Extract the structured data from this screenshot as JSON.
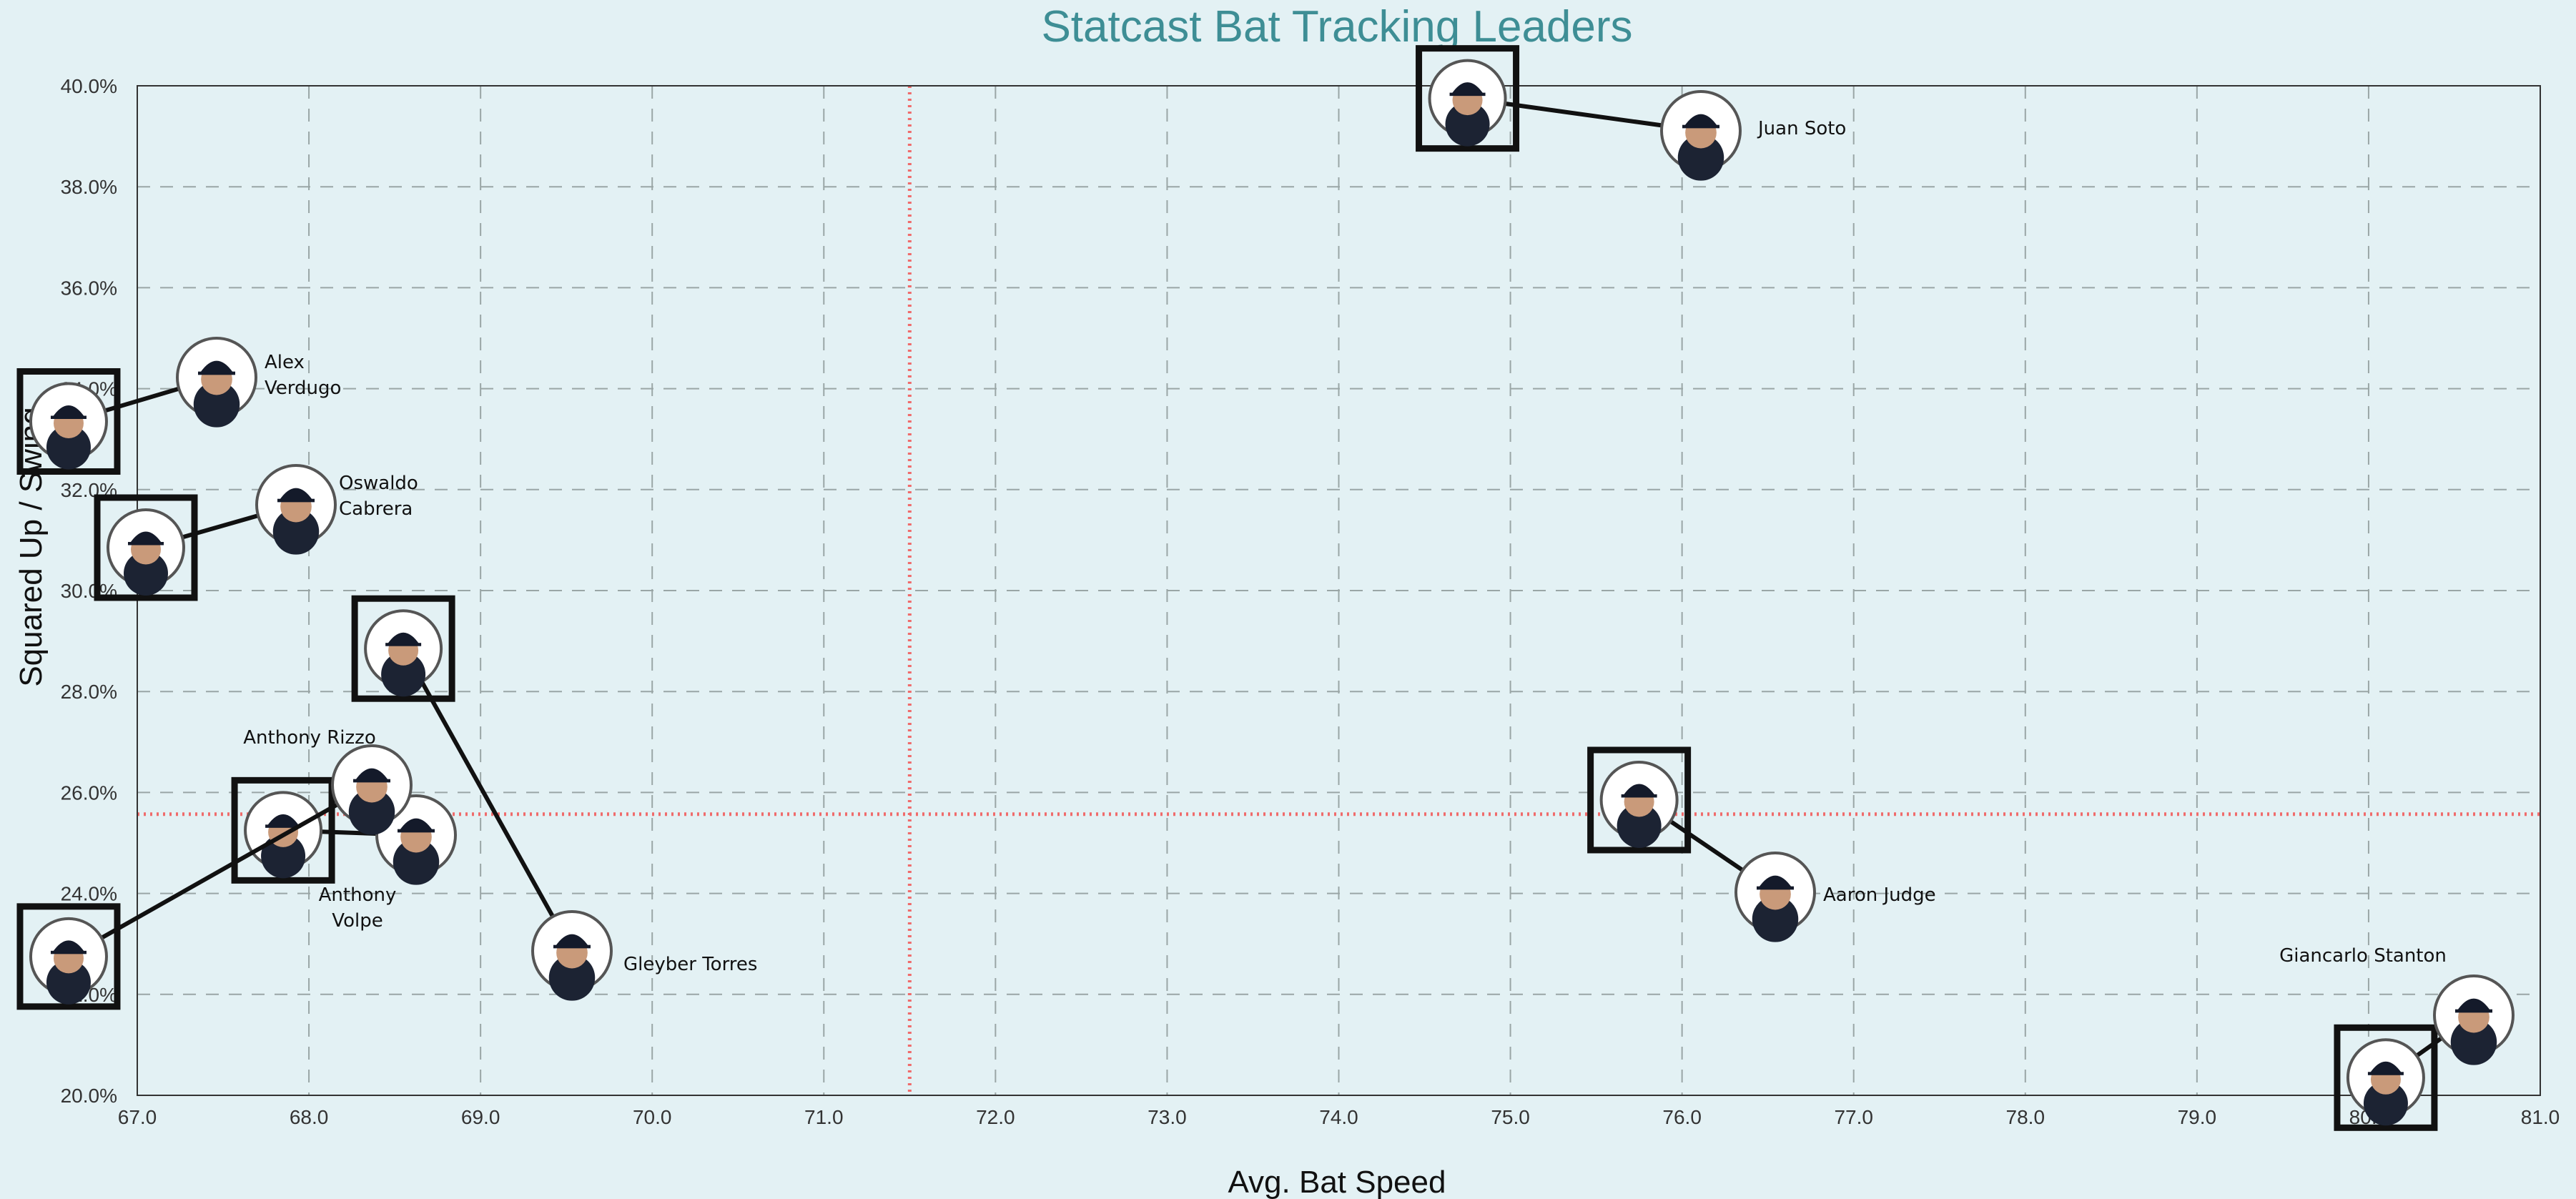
{
  "chart_data": {
    "type": "scatter",
    "title": "Statcast Bat Tracking Leaders",
    "xlabel": "Avg. Bat Speed",
    "ylabel": "Squared Up / Swing",
    "xlim": [
      67.0,
      81.0
    ],
    "ylim": [
      0.2,
      0.4
    ],
    "x_ticks": [
      "67.0",
      "68.0",
      "69.0",
      "70.0",
      "71.0",
      "72.0",
      "73.0",
      "74.0",
      "75.0",
      "76.0",
      "77.0",
      "78.0",
      "79.0",
      "80.0",
      "81.0"
    ],
    "y_ticks": [
      "20.0%",
      "22.0%",
      "24.0%",
      "26.0%",
      "28.0%",
      "30.0%",
      "32.0%",
      "34.0%",
      "36.0%",
      "38.0%",
      "40.0%"
    ],
    "grid": true,
    "reference_lines": {
      "x": 71.5,
      "y": 0.2557
    },
    "points": [
      {
        "name": "Juan Soto",
        "x": 74.75,
        "y": 0.3975,
        "label_lines": [
          "Juan Soto"
        ]
      },
      {
        "name": "Alex Verdugo",
        "x": 66.6,
        "y": 0.3335,
        "label_lines": [
          "Alex",
          "Verdugo"
        ]
      },
      {
        "name": "Oswaldo Cabrera",
        "x": 67.05,
        "y": 0.3085,
        "label_lines": [
          "Oswaldo",
          "Cabrera"
        ]
      },
      {
        "name": "Gleyber Torres",
        "x": 68.55,
        "y": 0.2885,
        "label_lines": [
          "Gleyber Torres"
        ]
      },
      {
        "name": "Anthony Volpe",
        "x": 67.85,
        "y": 0.2525,
        "label_lines": [
          "Anthony",
          "Volpe"
        ]
      },
      {
        "name": "Anthony Rizzo",
        "x": 66.6,
        "y": 0.2275,
        "label_lines": [
          "Anthony Rizzo"
        ]
      },
      {
        "name": "Aaron Judge",
        "x": 75.75,
        "y": 0.2585,
        "label_lines": [
          "Aaron Judge"
        ]
      },
      {
        "name": "Giancarlo Stanton",
        "x": 80.1,
        "y": 0.2035,
        "label_lines": [
          "Giancarlo Stanton"
        ]
      }
    ]
  }
}
